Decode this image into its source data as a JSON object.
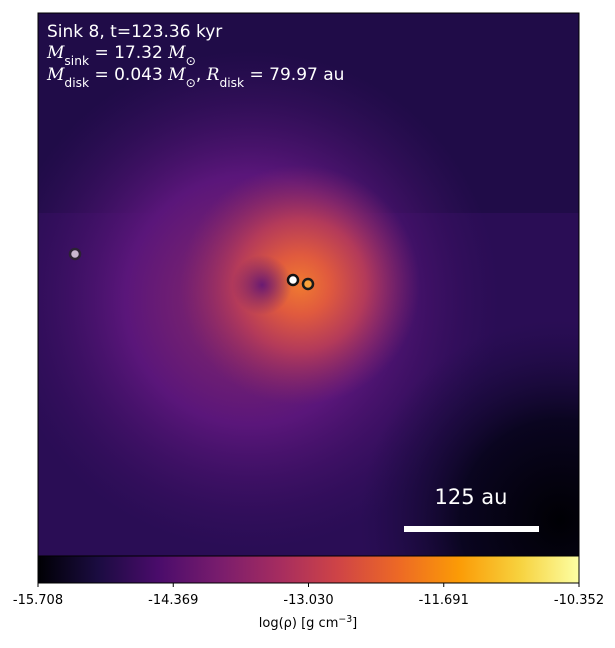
{
  "chart_data": {
    "type": "colorbar-map",
    "annotation": {
      "line1": "Sink 8, t=123.36 kyr",
      "line2": [
        {
          "t": "M",
          "italic": true
        },
        {
          "t": "sink",
          "sub": true
        },
        {
          "t": " = 17.32 "
        },
        {
          "t": "M",
          "italic": true
        },
        {
          "t": "⊙",
          "sub": true
        }
      ],
      "line3": [
        {
          "t": "M",
          "italic": true
        },
        {
          "t": "disk",
          "sub": true
        },
        {
          "t": " = 0.043 "
        },
        {
          "t": "M",
          "italic": true
        },
        {
          "t": "⊙",
          "sub": true
        },
        {
          "t": ", "
        },
        {
          "t": "R",
          "italic": true
        },
        {
          "t": "disk",
          "sub": true
        },
        {
          "t": " = 79.97 au"
        }
      ]
    },
    "scale_bar": "125 au",
    "colormap": "inferno",
    "clim": [
      -15.708,
      -10.352
    ],
    "cticks": [
      -15.708,
      -14.369,
      {
        "value": -13.03,
        "label": "-13.030"
      },
      -11.691,
      -10.352
    ],
    "clabel": [
      {
        "t": "log(ρ) [g cm"
      },
      {
        "t": "−3",
        "sup": true
      },
      {
        "t": "]"
      }
    ]
  }
}
